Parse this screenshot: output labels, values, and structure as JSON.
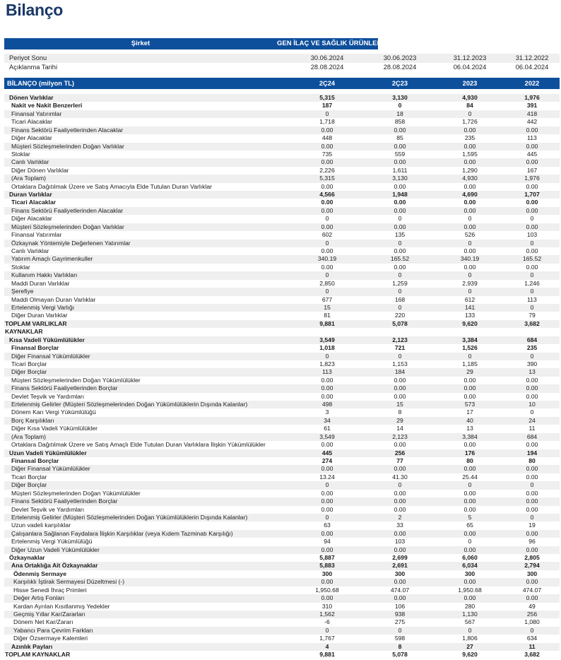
{
  "page": {
    "title": "Bilanço"
  },
  "colors": {
    "band_blue": "#0E4F9C",
    "title_navy": "#1B3867",
    "stripe_gray": "#EFEFEF"
  },
  "header": {
    "company_label": "Şirket",
    "company_name": "GEN İLAÇ VE SAĞLIK ÜRÜNLERİ",
    "meta_rows": [
      {
        "label": "Periyot Sonu",
        "values": [
          "30.06.2024",
          "30.06.2023",
          "31.12.2023",
          "31.12.2022"
        ]
      },
      {
        "label": "Açıklanma Tarihi",
        "values": [
          "28.08.2024",
          "28.08.2024",
          "06.04.2024",
          "06.04.2024"
        ]
      }
    ],
    "table_title": "BİLANÇO (milyon TL)",
    "columns": [
      "2Ç24",
      "2Ç23",
      "2023",
      "2022"
    ]
  },
  "rows": [
    {
      "label": "Dönen Varlıklar",
      "values": [
        "5,315",
        "3,130",
        "4,930",
        "1,976"
      ],
      "bold": true,
      "indent": 1
    },
    {
      "label": "Nakit ve Nakit Benzerleri",
      "values": [
        "187",
        "0",
        "84",
        "391"
      ],
      "bold": true,
      "indent": 2
    },
    {
      "label": "Finansal Yatırımlar",
      "values": [
        "0",
        "18",
        "0",
        "418"
      ],
      "bold": false,
      "indent": 2
    },
    {
      "label": "Ticari Alacaklar",
      "values": [
        "1,718",
        "858",
        "1,726",
        "442"
      ],
      "bold": false,
      "indent": 2
    },
    {
      "label": "Finans Sektörü Faaliyetlerinden Alacaklar",
      "values": [
        "0.00",
        "0.00",
        "0.00",
        "0.00"
      ],
      "bold": false,
      "indent": 2
    },
    {
      "label": "Diğer Alacaklar",
      "values": [
        "448",
        "85",
        "235",
        "113"
      ],
      "bold": false,
      "indent": 2
    },
    {
      "label": "Müşteri Sözleşmelerinden Doğan Varlıklar",
      "values": [
        "0.00",
        "0.00",
        "0.00",
        "0.00"
      ],
      "bold": false,
      "indent": 2
    },
    {
      "label": "Stoklar",
      "values": [
        "735",
        "559",
        "1,595",
        "445"
      ],
      "bold": false,
      "indent": 2
    },
    {
      "label": "Canlı Varlıklar",
      "values": [
        "0.00",
        "0.00",
        "0.00",
        "0.00"
      ],
      "bold": false,
      "indent": 2
    },
    {
      "label": "Diğer Dönen Varlıklar",
      "values": [
        "2,226",
        "1,611",
        "1,290",
        "167"
      ],
      "bold": false,
      "indent": 2
    },
    {
      "label": "(Ara Toplam)",
      "values": [
        "5,315",
        "3,130",
        "4,930",
        "1,976"
      ],
      "bold": false,
      "indent": 2
    },
    {
      "label": "Ortaklara Dağıtılmak Üzere ve Satış Amacıyla Elde Tutulan Duran Varlıklar",
      "values": [
        "0.00",
        "0.00",
        "0.00",
        "0.00"
      ],
      "bold": false,
      "indent": 2
    },
    {
      "label": "Duran Varlıklar",
      "values": [
        "4,566",
        "1,948",
        "4,690",
        "1,707"
      ],
      "bold": true,
      "indent": 1
    },
    {
      "label": "Ticari Alacaklar",
      "values": [
        "0.00",
        "0.00",
        "0.00",
        "0.00"
      ],
      "bold": true,
      "indent": 2
    },
    {
      "label": "Finans Sektörü Faaliyetlerinden Alacaklar",
      "values": [
        "0.00",
        "0.00",
        "0.00",
        "0.00"
      ],
      "bold": false,
      "indent": 2
    },
    {
      "label": "Diğer Alacaklar",
      "values": [
        "0",
        "0",
        "0",
        "0"
      ],
      "bold": false,
      "indent": 2
    },
    {
      "label": "Müşteri Sözleşmelerinden Doğan Varlıklar",
      "values": [
        "0.00",
        "0.00",
        "0.00",
        "0.00"
      ],
      "bold": false,
      "indent": 2
    },
    {
      "label": "Finansal Yatırımlar",
      "values": [
        "602",
        "135",
        "526",
        "103"
      ],
      "bold": false,
      "indent": 2
    },
    {
      "label": "Özkaynak Yöntemiyle Değerlenen Yatırımlar",
      "values": [
        "0",
        "0",
        "0",
        "0"
      ],
      "bold": false,
      "indent": 2
    },
    {
      "label": "Canlı Varlıklar",
      "values": [
        "0.00",
        "0.00",
        "0.00",
        "0.00"
      ],
      "bold": false,
      "indent": 2
    },
    {
      "label": "Yatırım Amaçlı Gayrimenkuller",
      "values": [
        "340.19",
        "165.52",
        "340.19",
        "165.52"
      ],
      "bold": false,
      "indent": 2
    },
    {
      "label": "Stoklar",
      "values": [
        "0.00",
        "0.00",
        "0.00",
        "0.00"
      ],
      "bold": false,
      "indent": 2
    },
    {
      "label": "Kullanım Hakkı Varlıkları",
      "values": [
        "0",
        "0",
        "0",
        "0"
      ],
      "bold": false,
      "indent": 2
    },
    {
      "label": "Maddi Duran Varlıklar",
      "values": [
        "2,850",
        "1,259",
        "2,939",
        "1,246"
      ],
      "bold": false,
      "indent": 2
    },
    {
      "label": "Şerefiye",
      "values": [
        "0",
        "0",
        "0",
        "0"
      ],
      "bold": false,
      "indent": 2
    },
    {
      "label": "Maddi Olmayan Duran Varlıklar",
      "values": [
        "677",
        "168",
        "612",
        "113"
      ],
      "bold": false,
      "indent": 2
    },
    {
      "label": "Ertelenmiş Vergi Varlığı",
      "values": [
        "15",
        "0",
        "141",
        "0"
      ],
      "bold": false,
      "indent": 2
    },
    {
      "label": "Diğer Duran Varlıklar",
      "values": [
        "81",
        "220",
        "133",
        "79"
      ],
      "bold": false,
      "indent": 2
    },
    {
      "label": "TOPLAM VARLIKLAR",
      "values": [
        "9,881",
        "5,078",
        "9,620",
        "3,682"
      ],
      "bold": true,
      "indent": 0
    },
    {
      "label": "KAYNAKLAR",
      "values": [
        "",
        "",
        "",
        ""
      ],
      "bold": true,
      "indent": 0
    },
    {
      "label": "Kısa Vadeli Yükümlülükler",
      "values": [
        "3,549",
        "2,123",
        "3,384",
        "684"
      ],
      "bold": true,
      "indent": 1
    },
    {
      "label": "Finansal Borçlar",
      "values": [
        "1,018",
        "721",
        "1,526",
        "235"
      ],
      "bold": true,
      "indent": 2
    },
    {
      "label": "Diğer Finansal Yükümlülükler",
      "values": [
        "0",
        "0",
        "0",
        "0"
      ],
      "bold": false,
      "indent": 2
    },
    {
      "label": "Ticari Borçlar",
      "values": [
        "1,823",
        "1,153",
        "1,185",
        "390"
      ],
      "bold": false,
      "indent": 2
    },
    {
      "label": "Diğer Borçlar",
      "values": [
        "113",
        "184",
        "29",
        "13"
      ],
      "bold": false,
      "indent": 2
    },
    {
      "label": "Müşteri Sözleşmelerinden Doğan Yükümlülükler",
      "values": [
        "0.00",
        "0.00",
        "0.00",
        "0.00"
      ],
      "bold": false,
      "indent": 2
    },
    {
      "label": "Finans Sektörü Faaliyetlerinden Borçlar",
      "values": [
        "0.00",
        "0.00",
        "0.00",
        "0.00"
      ],
      "bold": false,
      "indent": 2
    },
    {
      "label": "Devlet Teşvik ve Yardımları",
      "values": [
        "0.00",
        "0.00",
        "0.00",
        "0.00"
      ],
      "bold": false,
      "indent": 2
    },
    {
      "label": "Ertelenmiş Gelirler (Müşteri Sözleşmelerinden Doğan Yükümlülüklerin Dışında Kalanlar)",
      "values": [
        "498",
        "15",
        "573",
        "10"
      ],
      "bold": false,
      "indent": 2
    },
    {
      "label": "Dönem Karı Vergi Yükümlülüğü",
      "values": [
        "3",
        "8",
        "17",
        "0"
      ],
      "bold": false,
      "indent": 2
    },
    {
      "label": "Borç Karşılıkları",
      "values": [
        "34",
        "29",
        "40",
        "24"
      ],
      "bold": false,
      "indent": 2
    },
    {
      "label": "Diğer Kısa Vadeli Yükümlülükler",
      "values": [
        "61",
        "14",
        "13",
        "11"
      ],
      "bold": false,
      "indent": 2
    },
    {
      "label": "(Ara Toplam)",
      "values": [
        "3,549",
        "2,123",
        "3,384",
        "684"
      ],
      "bold": false,
      "indent": 2
    },
    {
      "label": "Ortaklara Dağıtılmak Üzere ve Satış Amaçlı Elde Tutulan Duran Varlıklara İlişkin Yükümlülükler",
      "values": [
        "0.00",
        "0.00",
        "0.00",
        "0.00"
      ],
      "bold": false,
      "indent": 2
    },
    {
      "label": "Uzun Vadeli Yükümlülükler",
      "values": [
        "445",
        "256",
        "176",
        "194"
      ],
      "bold": true,
      "indent": 1
    },
    {
      "label": "Finansal Borçlar",
      "values": [
        "274",
        "77",
        "80",
        "80"
      ],
      "bold": true,
      "indent": 2
    },
    {
      "label": "Diğer Finansal Yükümlülükler",
      "values": [
        "0.00",
        "0.00",
        "0.00",
        "0.00"
      ],
      "bold": false,
      "indent": 2
    },
    {
      "label": "Ticari Borçlar",
      "values": [
        "13.24",
        "41.30",
        "25.44",
        "0.00"
      ],
      "bold": false,
      "indent": 2
    },
    {
      "label": "Diğer Borçlar",
      "values": [
        "0",
        "0",
        "0",
        "0"
      ],
      "bold": false,
      "indent": 2
    },
    {
      "label": "Müşteri Sözleşmelerinden Doğan Yükümlülükler",
      "values": [
        "0.00",
        "0.00",
        "0.00",
        "0.00"
      ],
      "bold": false,
      "indent": 2
    },
    {
      "label": "Finans Sektörü Faaliyetlerinden Borçlar",
      "values": [
        "0.00",
        "0.00",
        "0.00",
        "0.00"
      ],
      "bold": false,
      "indent": 2
    },
    {
      "label": "Devlet Teşvik ve Yardımları",
      "values": [
        "0.00",
        "0.00",
        "0.00",
        "0.00"
      ],
      "bold": false,
      "indent": 2
    },
    {
      "label": "Ertelenmiş Gelirler (Müşteri Sözleşmelerinden Doğan Yükümlülüklerin Dışında Kalanlar)",
      "values": [
        "0",
        "2",
        "5",
        "0"
      ],
      "bold": false,
      "indent": 2
    },
    {
      "label": "Uzun vadeli karşılıklar",
      "values": [
        "63",
        "33",
        "65",
        "19"
      ],
      "bold": false,
      "indent": 2
    },
    {
      "label": "Çalışanlara Sağlanan Faydalara İlişkin Karşılıklar (veya Kıdem Tazminatı Karşılığı)",
      "values": [
        "0.00",
        "0.00",
        "0.00",
        "0.00"
      ],
      "bold": false,
      "indent": 2
    },
    {
      "label": "Ertelenmiş Vergi Yükümlülüğü",
      "values": [
        "94",
        "103",
        "0",
        "96"
      ],
      "bold": false,
      "indent": 2
    },
    {
      "label": "Diğer Uzun Vadeli Yükümlülükler",
      "values": [
        "0.00",
        "0.00",
        "0.00",
        "0.00"
      ],
      "bold": false,
      "indent": 2
    },
    {
      "label": "Özkaynaklar",
      "values": [
        "5,887",
        "2,699",
        "6,060",
        "2,805"
      ],
      "bold": true,
      "indent": 1
    },
    {
      "label": "Ana Ortaklığa Ait Özkaynaklar",
      "values": [
        "5,883",
        "2,691",
        "6,034",
        "2,794"
      ],
      "bold": true,
      "indent": 2
    },
    {
      "label": "Ödenmiş Sermaye",
      "values": [
        "300",
        "300",
        "300",
        "300"
      ],
      "bold": true,
      "indent": 3
    },
    {
      "label": "Karşılıklı İştirak Sermayesi Düzeltmesi (-)",
      "values": [
        "0.00",
        "0.00",
        "0.00",
        "0.00"
      ],
      "bold": false,
      "indent": 3
    },
    {
      "label": "Hisse Senedi İhraç Primleri",
      "values": [
        "1,950.68",
        "474.07",
        "1,950.68",
        "474.07"
      ],
      "bold": false,
      "indent": 3
    },
    {
      "label": "Değer Artış Fonları",
      "values": [
        "0.00",
        "0.00",
        "0.00",
        "0.00"
      ],
      "bold": false,
      "indent": 3
    },
    {
      "label": "Kardan Ayrılan Kısıtlanmış Yedekler",
      "values": [
        "310",
        "106",
        "280",
        "49"
      ],
      "bold": false,
      "indent": 3
    },
    {
      "label": "Geçmiş Yıllar Kar/Zararları",
      "values": [
        "1,562",
        "938",
        "1,130",
        "256"
      ],
      "bold": false,
      "indent": 3
    },
    {
      "label": "Dönem Net Kar/Zararı",
      "values": [
        "-6",
        "275",
        "567",
        "1,080"
      ],
      "bold": false,
      "indent": 3
    },
    {
      "label": "Yabancı Para Çevrim Farkları",
      "values": [
        "0",
        "0",
        "0",
        "0"
      ],
      "bold": false,
      "indent": 3
    },
    {
      "label": "Diğer Özsermaye Kalemleri",
      "values": [
        "1,767",
        "598",
        "1,806",
        "634"
      ],
      "bold": false,
      "indent": 3
    },
    {
      "label": "Azınlık Payları",
      "values": [
        "4",
        "8",
        "27",
        "11"
      ],
      "bold": true,
      "indent": 2
    },
    {
      "label": "TOPLAM KAYNAKLAR",
      "values": [
        "9,881",
        "5,078",
        "9,620",
        "3,682"
      ],
      "bold": true,
      "indent": 0
    }
  ]
}
